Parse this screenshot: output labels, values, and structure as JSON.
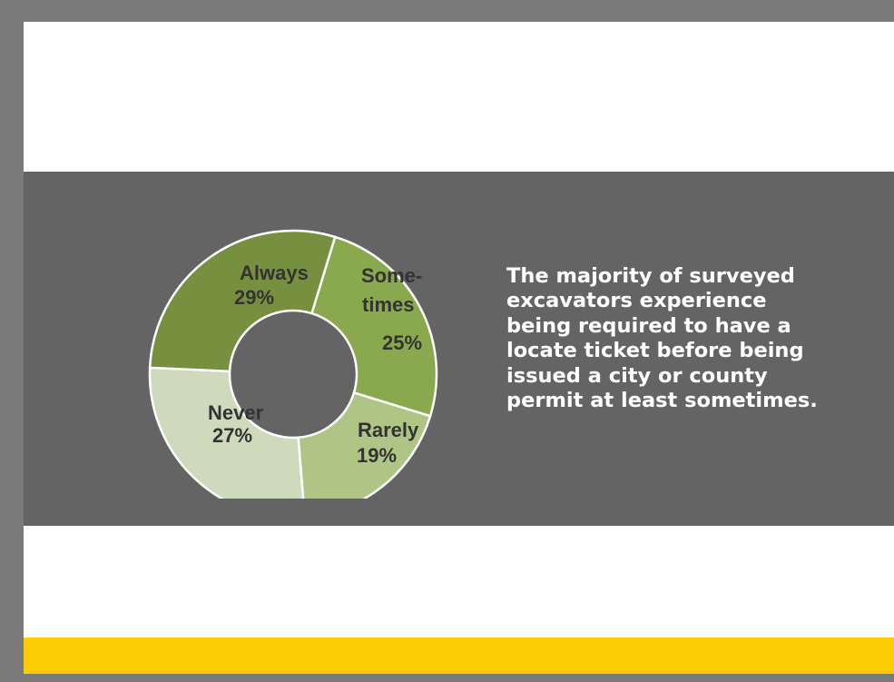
{
  "statement": "The majority of surveyed\nexcavators experience\nbeing required to have a\nlocate ticket before being\nissued a city or county\npermit at least sometimes.",
  "colors": {
    "band": "#646464",
    "accent": "#fccc05",
    "text": "#ffffff",
    "label": "#333333"
  },
  "chart_data": {
    "type": "pie",
    "donut": true,
    "title": "",
    "slices": [
      {
        "category": "Sometimes",
        "label_lines": [
          "Some-",
          "times",
          "25%"
        ],
        "value": 25,
        "color": "#8aa84e"
      },
      {
        "category": "Rarely",
        "label_lines": [
          "Rarely",
          "19%"
        ],
        "value": 19,
        "color": "#aec585"
      },
      {
        "category": "Never",
        "label_lines": [
          "Never",
          "27%"
        ],
        "value": 27,
        "color": "#cedabb"
      },
      {
        "category": "Always",
        "label_lines": [
          "Always",
          "29%"
        ],
        "value": 29,
        "color": "#76903f"
      }
    ]
  }
}
